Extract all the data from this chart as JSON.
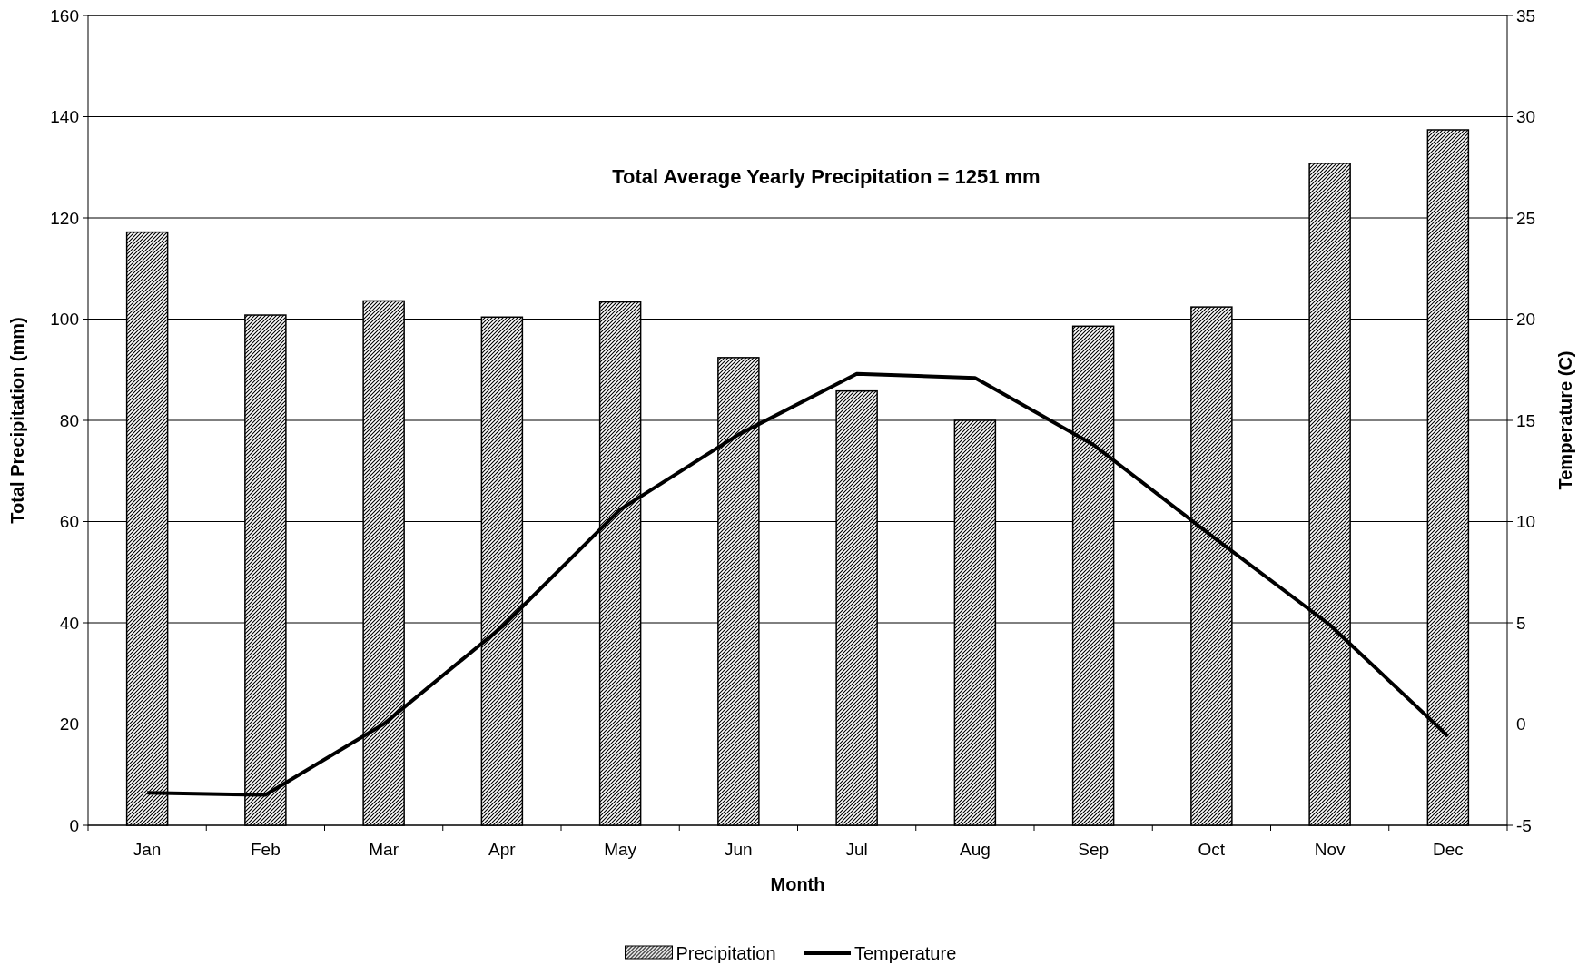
{
  "chart_data": {
    "type": "bar",
    "xlabel": "Month",
    "ylabel": "Total Precipitation (mm)",
    "y2label": "Temperature (C)",
    "annotations": [
      "Total Average Yearly Precipitation = 1251 mm"
    ],
    "categories": [
      "Jan",
      "Feb",
      "Mar",
      "Apr",
      "May",
      "Jun",
      "Jul",
      "Aug",
      "Sep",
      "Oct",
      "Nov",
      "Dec"
    ],
    "series": [
      {
        "name": "Precipitation",
        "color": "#000000",
        "values": [
          117.2,
          100.8,
          103.6,
          100.4,
          103.4,
          92.4,
          85.8,
          80,
          98.6,
          102.4,
          130.8,
          137.4
        ]
      },
      {
        "name": "Temperature",
        "type": "line",
        "axis": "y2",
        "color": "#000000",
        "values": [
          -3.4,
          -3.5,
          0,
          4.8,
          10.6,
          14.3,
          17.3,
          17.1,
          13.8,
          9.3,
          4.9,
          -0.6
        ]
      }
    ],
    "ylim": [
      0,
      160
    ],
    "yticks": [
      0,
      20,
      40,
      60,
      80,
      100,
      120,
      140,
      160
    ],
    "y2lim": [
      -5,
      35
    ],
    "y2ticks": [
      -5,
      0,
      5,
      10,
      15,
      20,
      25,
      30,
      35
    ],
    "grid": "y",
    "legend": "bottom",
    "marker": "none",
    "line_style": "solid"
  }
}
